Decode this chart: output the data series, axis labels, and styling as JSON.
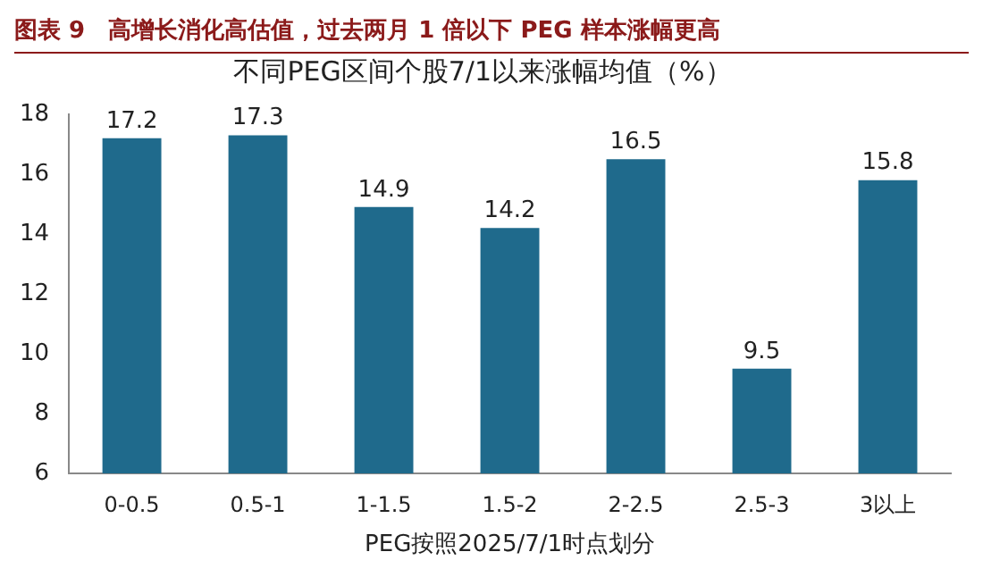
{
  "chart_data": {
    "type": "bar",
    "title": "图表 9　高增长消化高估值，过去两月 1 倍以下 PEG 样本涨幅更高",
    "subtitle": "不同PEG区间个股7/1以来涨幅均值（%）",
    "xlabel": "PEG按照2025/7/1时点划分",
    "categories": [
      "0-0.5",
      "0.5-1",
      "1-1.5",
      "1.5-2",
      "2-2.5",
      "2.5-3",
      "3以上"
    ],
    "values": [
      17.2,
      17.3,
      14.9,
      14.2,
      16.5,
      9.5,
      15.8
    ],
    "color": "#1f6a8c",
    "ylim": [
      6,
      18
    ],
    "yticks": [
      6,
      8,
      10,
      12,
      14,
      16,
      18
    ],
    "grid": false,
    "data_labels": true
  }
}
